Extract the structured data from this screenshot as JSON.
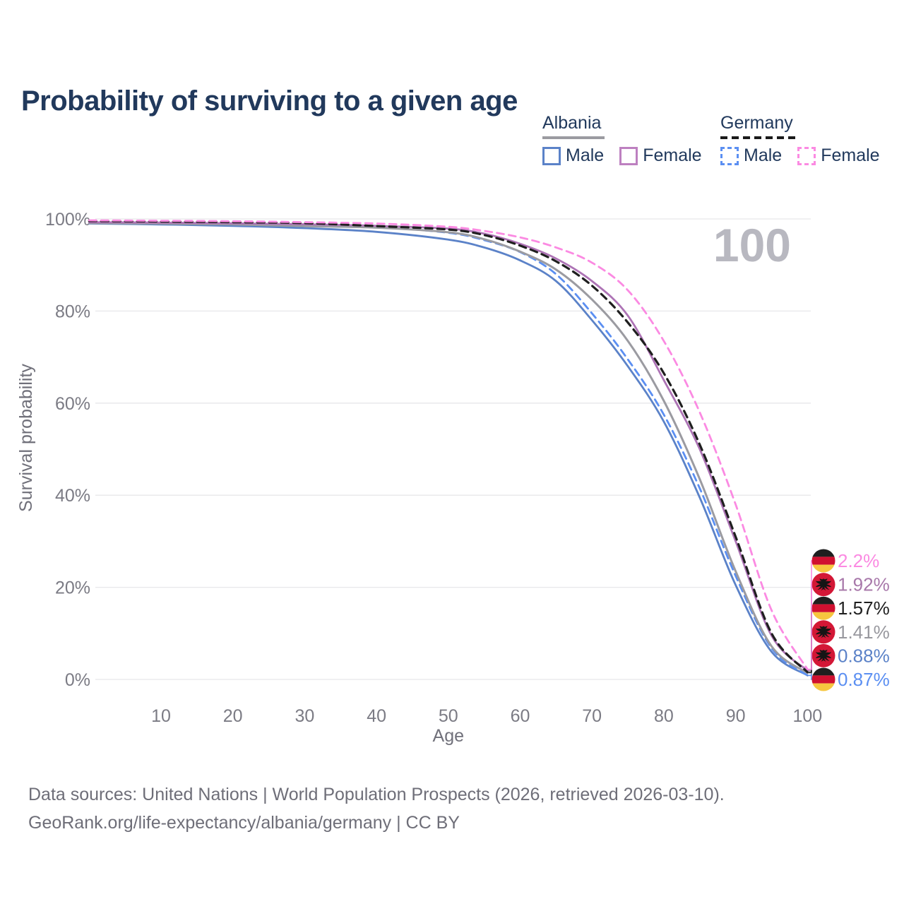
{
  "title": "Probability of surviving to a given age",
  "legend": {
    "albania": {
      "label": "Albania",
      "male": "Male",
      "female": "Female"
    },
    "germany": {
      "label": "Germany",
      "male": "Male",
      "female": "Female"
    }
  },
  "age_indicator": "100",
  "chart_data": {
    "type": "line",
    "title": "Probability of surviving to a given age",
    "xlabel": "Age",
    "ylabel": "Survival probability",
    "xlim": [
      0,
      100
    ],
    "ylim": [
      0,
      100
    ],
    "grid": "horizontal",
    "x_ticks": [
      10,
      20,
      30,
      40,
      50,
      60,
      70,
      80,
      90,
      100
    ],
    "y_tick_values": [
      0,
      20,
      40,
      60,
      80,
      100
    ],
    "y_tick_labels": [
      "0%",
      "20%",
      "40%",
      "60%",
      "80%",
      "100%"
    ],
    "ages": [
      0,
      10,
      20,
      30,
      40,
      50,
      55,
      60,
      65,
      70,
      75,
      80,
      85,
      90,
      95,
      100
    ],
    "series": [
      {
        "name": "Albania Male",
        "country": "Albania",
        "sex": "Male",
        "color": "#5b82c8",
        "dashed": false,
        "width": 2.8,
        "flag": "al",
        "values": [
          99.0,
          98.8,
          98.5,
          98.0,
          97.2,
          95.5,
          93.8,
          91.0,
          86.5,
          78.0,
          68.0,
          56.0,
          39.5,
          20.5,
          6.0,
          0.88
        ],
        "end_label": "0.88%",
        "end_label_color": "#5b82c8",
        "end_slot": 4
      },
      {
        "name": "Germany Male",
        "country": "Germany",
        "sex": "Male",
        "color": "#5b8ff2",
        "dashed": true,
        "width": 2.8,
        "flag": "de",
        "values": [
          99.4,
          99.3,
          99.15,
          98.9,
          98.3,
          97.0,
          95.4,
          92.8,
          88.0,
          79.5,
          69.5,
          57.5,
          41.5,
          22.5,
          6.8,
          0.87
        ],
        "end_label": "0.87%",
        "end_label_color": "#5b8ff2",
        "end_slot": 5
      },
      {
        "name": "Albania",
        "country": "Albania",
        "sex": "Both",
        "color": "#9b9ba1",
        "dashed": false,
        "width": 3.0,
        "flag": "al",
        "values": [
          99.1,
          99.0,
          98.8,
          98.45,
          98.1,
          97.1,
          95.6,
          92.9,
          89.0,
          82.5,
          73.5,
          60.5,
          43.5,
          23.5,
          7.2,
          1.41
        ],
        "end_label": "1.41%",
        "end_label_color": "#98989e",
        "end_slot": 3
      },
      {
        "name": "Albania Female",
        "country": "Albania",
        "sex": "Female",
        "color": "#ad73b5",
        "dashed": false,
        "width": 2.8,
        "flag": "al",
        "values": [
          99.3,
          99.2,
          99.05,
          98.85,
          98.5,
          97.9,
          96.8,
          94.6,
          91.4,
          86.5,
          79.0,
          65.0,
          50.0,
          30.0,
          9.5,
          1.92
        ],
        "end_label": "1.92%",
        "end_label_color": "#a878aa",
        "end_slot": 1
      },
      {
        "name": "Germany",
        "country": "Germany",
        "sex": "Both",
        "color": "#1f1f1f",
        "dashed": true,
        "width": 3.2,
        "flag": "de",
        "values": [
          99.55,
          99.45,
          99.3,
          99.1,
          98.45,
          97.7,
          96.5,
          94.2,
          90.8,
          85.5,
          77.5,
          66.5,
          51.0,
          31.0,
          10.0,
          1.57
        ],
        "end_label": "1.57%",
        "end_label_color": "#1f1f1f",
        "end_slot": 2
      },
      {
        "name": "Germany Female",
        "country": "Germany",
        "sex": "Female",
        "color": "#fb8ae2",
        "dashed": true,
        "width": 2.8,
        "flag": "de",
        "values": [
          99.7,
          99.6,
          99.5,
          99.3,
          99.0,
          98.3,
          97.4,
          96.0,
          93.8,
          90.5,
          84.5,
          73.5,
          58.0,
          38.0,
          15.0,
          2.2
        ],
        "end_label": "2.2%",
        "end_label_color": "#fb8ae2",
        "end_slot": 0
      }
    ],
    "colors": {
      "grid": "#e7e7ea",
      "tick_text": "#7b7b84",
      "axis_title": "#70707a",
      "watermark": "#b8b8c0",
      "title_text": "#21395c",
      "albania_flag_red": "#d31736",
      "german_flag_black": "#1f1f1f",
      "german_flag_red": "#d01030",
      "german_flag_gold": "#f6c63f"
    }
  },
  "footer": {
    "line1": "Data sources: United Nations | World Population Prospects (2026, retrieved 2026-03-10).",
    "line2": "GeoRank.org/life-expectancy/albania/germany | CC BY"
  }
}
